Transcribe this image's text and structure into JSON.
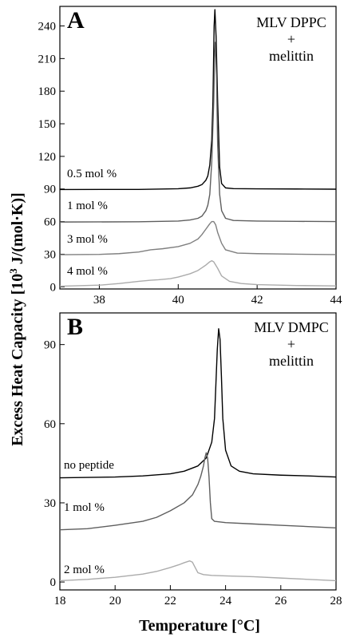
{
  "figure": {
    "ylabel": "Excess Heat Capacity [10",
    "ylabel_sup": "3",
    "ylabel_tail": " J/(mol·K)]",
    "xlabel": "Temperature [°C]"
  },
  "chart_data": [
    {
      "type": "line",
      "panel_label": "A",
      "annotation": [
        "MLV DPPC",
        "+",
        "melittin"
      ],
      "xlim": [
        37,
        44
      ],
      "ylim": [
        -2,
        258
      ],
      "xticks": [
        38,
        40,
        42,
        44
      ],
      "yticks": [
        0,
        30,
        60,
        90,
        120,
        150,
        180,
        210,
        240
      ],
      "grid": false,
      "series": [
        {
          "name": "0.5 mol %",
          "color": "#000000",
          "x": [
            37,
            39,
            40,
            40.3,
            40.5,
            40.6,
            40.7,
            40.75,
            40.8,
            40.85,
            40.88,
            40.91,
            40.93,
            40.96,
            41.0,
            41.05,
            41.1,
            41.2,
            41.4,
            42,
            43,
            44
          ],
          "y": [
            89.5,
            89.6,
            90.2,
            91,
            92.5,
            94,
            98,
            102,
            112,
            135,
            170,
            240,
            255,
            230,
            170,
            110,
            95,
            91,
            90.3,
            90.1,
            90,
            89.8
          ]
        },
        {
          "name": "1 mol %",
          "color": "#5e5e5e",
          "x": [
            37,
            39,
            40,
            40.3,
            40.5,
            40.6,
            40.7,
            40.75,
            40.8,
            40.85,
            40.9,
            40.92,
            40.94,
            40.97,
            41.0,
            41.05,
            41.1,
            41.2,
            41.4,
            42,
            43,
            44
          ],
          "y": [
            59.6,
            59.8,
            60.5,
            61.5,
            63,
            65,
            70,
            75,
            85,
            115,
            170,
            210,
            225,
            195,
            130,
            85,
            70,
            63,
            61,
            60.5,
            60.2,
            60
          ],
          "label_pos": [
            0.5
          ]
        },
        {
          "name": "3 mol %",
          "color": "#7f7f7f",
          "x": [
            37,
            38,
            38.5,
            39,
            39.3,
            39.6,
            40.0,
            40.3,
            40.5,
            40.6,
            40.7,
            40.8,
            40.85,
            40.9,
            40.95,
            41.0,
            41.1,
            41.2,
            41.5,
            42,
            43,
            44
          ],
          "y": [
            29.5,
            29.8,
            30.5,
            32,
            34,
            35,
            37,
            40,
            44,
            48,
            53,
            58,
            60,
            60,
            57,
            50,
            40,
            34,
            31,
            30.5,
            30,
            29.6
          ]
        },
        {
          "name": "4 mol %",
          "color": "#ababab",
          "x": [
            37,
            38,
            38.5,
            39,
            39.3,
            39.5,
            39.8,
            40.0,
            40.3,
            40.5,
            40.7,
            40.8,
            40.85,
            40.9,
            41.0,
            41.1,
            41.3,
            41.6,
            42,
            43,
            44
          ],
          "y": [
            0.5,
            1.5,
            3,
            5,
            6,
            6.5,
            7.5,
            9,
            12,
            15,
            20,
            23,
            24,
            23,
            17,
            10,
            5,
            3,
            2,
            1.2,
            0.8
          ]
        }
      ]
    },
    {
      "type": "line",
      "panel_label": "B",
      "annotation": [
        "MLV DMPC",
        "+",
        "melittin"
      ],
      "xlim": [
        18,
        28
      ],
      "ylim": [
        -3,
        102
      ],
      "xticks": [
        18,
        20,
        22,
        24,
        26,
        28
      ],
      "yticks": [
        0,
        30,
        60,
        90
      ],
      "grid": false,
      "series": [
        {
          "name": "no peptide",
          "color": "#000000",
          "x": [
            18,
            20,
            21,
            22,
            22.5,
            23.0,
            23.3,
            23.5,
            23.6,
            23.65,
            23.7,
            23.75,
            23.8,
            23.85,
            23.9,
            24.0,
            24.2,
            24.5,
            25,
            26,
            27,
            28
          ],
          "y": [
            39.5,
            39.8,
            40.2,
            41,
            42,
            44,
            47,
            53,
            62,
            75,
            88,
            96,
            92,
            78,
            62,
            50,
            44,
            42,
            41,
            40.5,
            40.2,
            39.8
          ]
        },
        {
          "name": "1 mol %",
          "color": "#5e5e5e",
          "x": [
            18,
            19,
            20,
            21,
            21.5,
            22,
            22.5,
            22.8,
            23.0,
            23.1,
            23.2,
            23.25,
            23.3,
            23.35,
            23.4,
            23.45,
            23.5,
            23.6,
            24,
            25,
            26,
            27,
            28
          ],
          "y": [
            19.8,
            20.2,
            21.5,
            23,
            24.5,
            27,
            30,
            33,
            37,
            40,
            44,
            47,
            49,
            47,
            40,
            30,
            24,
            23,
            22.5,
            22,
            21.5,
            21,
            20.5
          ]
        },
        {
          "name": "2 mol %",
          "color": "#ababab",
          "x": [
            18,
            19,
            20,
            21,
            21.5,
            22,
            22.3,
            22.5,
            22.7,
            22.8,
            22.9,
            23.0,
            23.2,
            23.5,
            24,
            25,
            26,
            27,
            28
          ],
          "y": [
            0.5,
            1,
            1.8,
            3,
            4,
            5.5,
            6.5,
            7.3,
            8,
            7.5,
            5.5,
            3.5,
            2.8,
            2.5,
            2.3,
            2,
            1.5,
            1,
            0.5
          ]
        }
      ]
    }
  ]
}
